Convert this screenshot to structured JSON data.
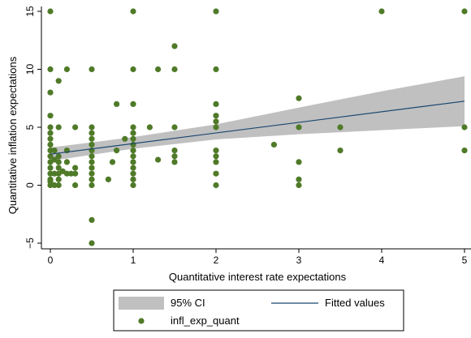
{
  "chart_data": {
    "type": "scatter",
    "xlabel": "Quantitative interest rate expectations",
    "ylabel": "Quantitative inflation expectations",
    "xlim": [
      0,
      5
    ],
    "ylim": [
      -5,
      15
    ],
    "xticks": [
      0,
      1,
      2,
      3,
      4,
      5
    ],
    "yticks": [
      -5,
      0,
      5,
      10,
      15
    ],
    "grid": false,
    "legend_position": "bottom",
    "colors": {
      "points": "#4f7a28",
      "band": "#c0c0c0",
      "line": "#1a476f"
    },
    "series": [
      {
        "name": "infl_exp_quant",
        "kind": "scatter",
        "points": [
          [
            0,
            15
          ],
          [
            1,
            15
          ],
          [
            2,
            15
          ],
          [
            4,
            15
          ],
          [
            5,
            15
          ],
          [
            1.5,
            12
          ],
          [
            0,
            10
          ],
          [
            0.2,
            10
          ],
          [
            0.5,
            10
          ],
          [
            1,
            10
          ],
          [
            1.3,
            10
          ],
          [
            1.5,
            10
          ],
          [
            2,
            10
          ],
          [
            0.1,
            9
          ],
          [
            0,
            8
          ],
          [
            0.8,
            7
          ],
          [
            1,
            7
          ],
          [
            2,
            7
          ],
          [
            3,
            7.5
          ],
          [
            0,
            6
          ],
          [
            2,
            6
          ],
          [
            0,
            5
          ],
          [
            0.1,
            5
          ],
          [
            0.3,
            5
          ],
          [
            0.5,
            5
          ],
          [
            1,
            5
          ],
          [
            1.2,
            5
          ],
          [
            1.5,
            5
          ],
          [
            2,
            5
          ],
          [
            2,
            5.5
          ],
          [
            3,
            5
          ],
          [
            3.5,
            5
          ],
          [
            5,
            5
          ],
          [
            0,
            4.5
          ],
          [
            0.5,
            4.5
          ],
          [
            1,
            4.5
          ],
          [
            0,
            4
          ],
          [
            0.5,
            4
          ],
          [
            1,
            4
          ],
          [
            0.9,
            4
          ],
          [
            0,
            3.5
          ],
          [
            0.5,
            3.5
          ],
          [
            1,
            3.5
          ],
          [
            2.7,
            3.5
          ],
          [
            0,
            3
          ],
          [
            0.05,
            3
          ],
          [
            0.2,
            3
          ],
          [
            0.5,
            3
          ],
          [
            0.8,
            3
          ],
          [
            1,
            3
          ],
          [
            1.5,
            3
          ],
          [
            2,
            3
          ],
          [
            3.5,
            3
          ],
          [
            5,
            3
          ],
          [
            0,
            2.5
          ],
          [
            0.1,
            2.5
          ],
          [
            0.5,
            2.5
          ],
          [
            1,
            2.5
          ],
          [
            1.5,
            2.5
          ],
          [
            2,
            2.5
          ],
          [
            0,
            2
          ],
          [
            0.1,
            2
          ],
          [
            0.2,
            2
          ],
          [
            0.5,
            2
          ],
          [
            0.75,
            2
          ],
          [
            1,
            2
          ],
          [
            1.3,
            2.2
          ],
          [
            1.5,
            2
          ],
          [
            2,
            2
          ],
          [
            3,
            2
          ],
          [
            0,
            1.5
          ],
          [
            0.1,
            1.5
          ],
          [
            0.3,
            1.5
          ],
          [
            0.5,
            1.5
          ],
          [
            1,
            1.5
          ],
          [
            0,
            1
          ],
          [
            0.05,
            1
          ],
          [
            0.1,
            1
          ],
          [
            0.2,
            1
          ],
          [
            0.25,
            1
          ],
          [
            0.3,
            1
          ],
          [
            0.5,
            1
          ],
          [
            1,
            1
          ],
          [
            2,
            1
          ],
          [
            0,
            0.5
          ],
          [
            0.1,
            0.5
          ],
          [
            0.5,
            0.5
          ],
          [
            0.7,
            0.5
          ],
          [
            1,
            0.5
          ],
          [
            3,
            0.5
          ],
          [
            0,
            0
          ],
          [
            0.05,
            0
          ],
          [
            0.1,
            0
          ],
          [
            0.3,
            0
          ],
          [
            0.5,
            0
          ],
          [
            1,
            0
          ],
          [
            2,
            0
          ],
          [
            3,
            0
          ],
          [
            0,
            0.3
          ],
          [
            0.05,
            2.2
          ],
          [
            0.15,
            1.2
          ],
          [
            0.5,
            -3
          ],
          [
            0.5,
            -5
          ]
        ]
      },
      {
        "name": "Fitted values",
        "kind": "line",
        "x": [
          0,
          5
        ],
        "y": [
          2.68,
          7.25
        ]
      },
      {
        "name": "95% CI",
        "kind": "band",
        "x": [
          0,
          1,
          2,
          3,
          4,
          5
        ],
        "lower": [
          2.1,
          3.15,
          3.95,
          4.4,
          4.75,
          5.1
        ],
        "upper": [
          3.25,
          4.15,
          5.25,
          6.7,
          8.1,
          9.4
        ]
      }
    ],
    "legend": [
      {
        "label": "95% CI",
        "swatch": "band"
      },
      {
        "label": "Fitted values",
        "swatch": "line"
      },
      {
        "label": "infl_exp_quant",
        "swatch": "point"
      }
    ]
  }
}
